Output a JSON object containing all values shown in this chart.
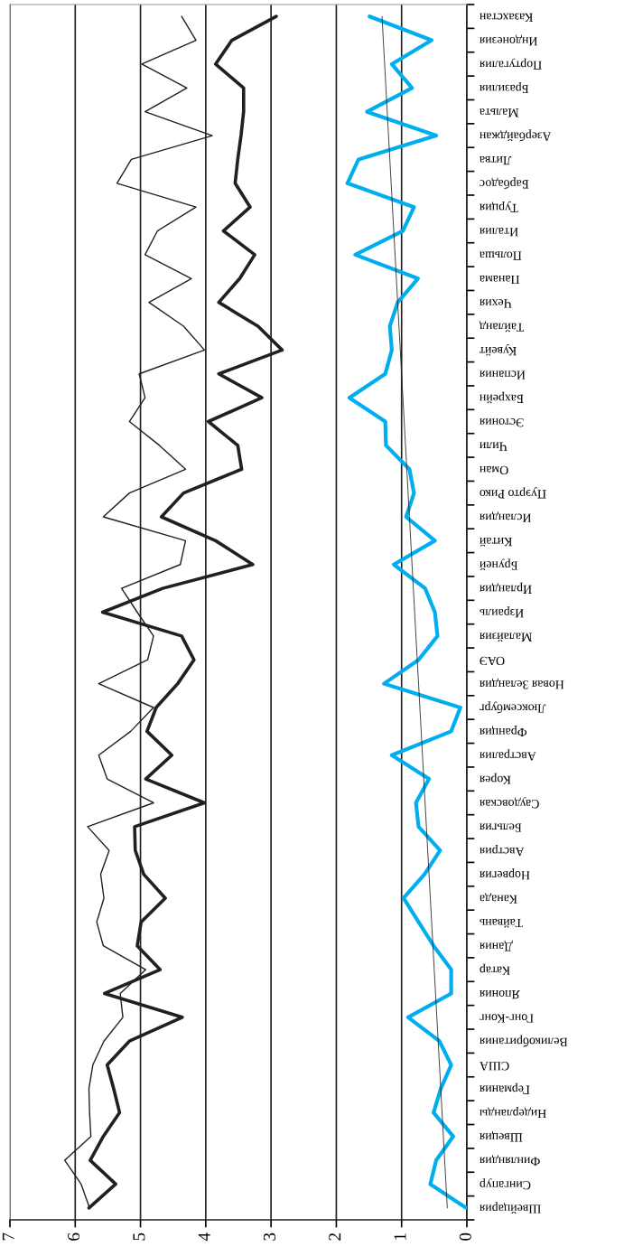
{
  "chart_data": {
    "type": "line",
    "orientation": "horizontal",
    "categories": [
      "Казахстан",
      "Индонезия",
      "Португалия",
      "Бразилия",
      "Мальта",
      "Азербайджан",
      "Литва",
      "Барбадос",
      "Турция",
      "Италия",
      "Польша",
      "Панама",
      "Чехия",
      "Тайланд",
      "Кувейт",
      "Испания",
      "Бахрейн",
      "Эстония",
      "Чили",
      "Оман",
      "Пуэрто Рико",
      "Исландия",
      "Китай",
      "Бруней",
      "Ирландия",
      "Израиль",
      "Малайзия",
      "ОАЭ",
      "Новая Зеландия",
      "Люксембург",
      "Франция",
      "Австралия",
      "Корея",
      "Саудовская",
      "Бельгия",
      "Австрия",
      "Норвегия",
      "Канада",
      "Тайвань",
      "Дания",
      "Катар",
      "Япония",
      "Гонг-Конг",
      "Великобритания",
      "США",
      "Германия",
      "Нидерланды",
      "Швеция",
      "Финляндия",
      "Сингапур",
      "Швейцария"
    ],
    "series": [
      {
        "color": "#231f20",
        "values": [
          4.37,
          4.15,
          4.98,
          4.29,
          4.93,
          3.9,
          5.14,
          5.36,
          4.15,
          4.74,
          4.93,
          4.22,
          4.87,
          4.34,
          4.02,
          5.02,
          4.93,
          5.17,
          4.71,
          4.31,
          5.17,
          5.57,
          4.31,
          4.39,
          5.29,
          5.05,
          4.8,
          4.89,
          5.64,
          4.8,
          5.15,
          5.64,
          5.51,
          4.8,
          5.81,
          5.48,
          5.61,
          5.56,
          5.67,
          5.57,
          4.92,
          5.31,
          5.27,
          5.56,
          5.73,
          5.79,
          5.78,
          5.76,
          6.16,
          5.91,
          5.78
        ]
      },
      {
        "color": "#231f20",
        "values": [
          2.92,
          3.6,
          3.85,
          3.42,
          3.42,
          3.46,
          3.51,
          3.55,
          3.32,
          3.73,
          3.25,
          3.48,
          3.8,
          3.2,
          2.83,
          3.8,
          3.14,
          3.96,
          3.51,
          3.45,
          4.34,
          4.68,
          3.85,
          3.28,
          4.66,
          5.58,
          4.37,
          4.18,
          4.43,
          4.76,
          4.9,
          4.52,
          4.92,
          4.02,
          5.09,
          5.08,
          4.95,
          4.62,
          4.99,
          5.05,
          4.7,
          5.55,
          4.36,
          5.17,
          5.51,
          5.41,
          5.32,
          5.57,
          5.77,
          5.38,
          5.79
        ]
      },
      {
        "color": "#00aeef",
        "values": [
          1.49,
          0.54,
          1.15,
          0.84,
          1.53,
          0.47,
          1.66,
          1.83,
          0.81,
          0.98,
          1.71,
          0.75,
          1.06,
          1.18,
          1.15,
          1.25,
          1.8,
          1.25,
          1.24,
          0.88,
          0.81,
          0.93,
          0.49,
          1.12,
          0.64,
          0.49,
          0.45,
          0.74,
          1.27,
          0.1,
          0.24,
          1.15,
          0.58,
          0.78,
          0.74,
          0.41,
          0.65,
          0.97,
          0.74,
          0.51,
          0.24,
          0.24,
          0.9,
          0.42,
          0.24,
          0.4,
          0.51,
          0.21,
          0.47,
          0.56,
          0.01
        ]
      },
      {
        "color": "#231f20",
        "values": [
          1.3,
          null,
          null,
          null,
          null,
          null,
          null,
          null,
          null,
          null,
          null,
          null,
          null,
          null,
          null,
          null,
          null,
          null,
          null,
          null,
          null,
          null,
          null,
          null,
          null,
          null,
          null,
          null,
          null,
          null,
          null,
          null,
          null,
          null,
          null,
          null,
          null,
          null,
          null,
          null,
          null,
          null,
          null,
          null,
          null,
          null,
          null,
          null,
          null,
          null,
          0.3
        ]
      }
    ],
    "xlim": [
      7,
      0
    ],
    "xticks": [
      0,
      1,
      2,
      3,
      4,
      5,
      6,
      7
    ],
    "grid": "x"
  }
}
